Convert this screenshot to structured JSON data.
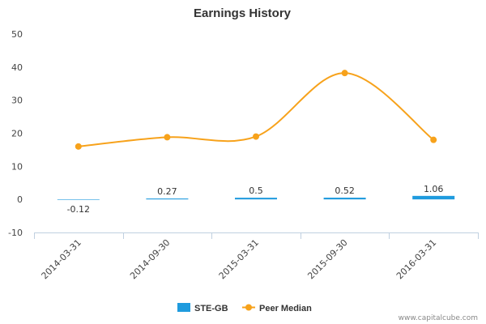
{
  "chart_data": {
    "type": "bar+line",
    "title": "Earnings History",
    "categories": [
      "2014-03-31",
      "2014-09-30",
      "2015-03-31",
      "2015-09-30",
      "2016-03-31"
    ],
    "ylim": [
      -10,
      50
    ],
    "yticks": [
      -10,
      0,
      10,
      20,
      30,
      40,
      50
    ],
    "grid": false,
    "legend_position": "bottom-center",
    "series": [
      {
        "name": "STE-GB",
        "type": "bar",
        "color": "#1f9bde",
        "values": [
          -0.12,
          0.27,
          0.5,
          0.52,
          1.06
        ],
        "labels": [
          "-0.12",
          "0.27",
          "0.5",
          "0.52",
          "1.06"
        ]
      },
      {
        "name": "Peer Median",
        "type": "line",
        "color": "#f7a21b",
        "values": [
          16,
          18.8,
          19,
          38.2,
          18
        ]
      }
    ]
  },
  "credit": "www.capitalcube.com"
}
